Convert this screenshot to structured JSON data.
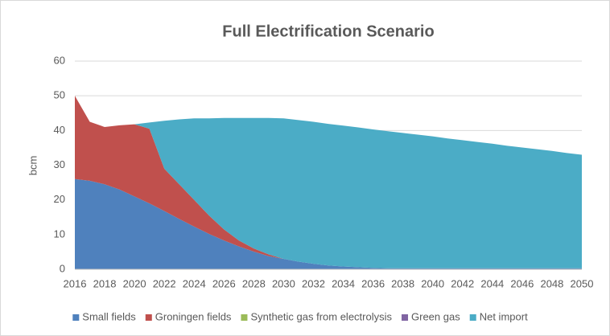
{
  "chart_data": {
    "type": "stacked_area",
    "title": "Full Electrification Scenario",
    "y_label": "bcm",
    "x": [
      2016,
      2017,
      2018,
      2019,
      2020,
      2021,
      2022,
      2023,
      2024,
      2025,
      2026,
      2027,
      2028,
      2029,
      2030,
      2031,
      2032,
      2033,
      2034,
      2035,
      2036,
      2037,
      2038,
      2039,
      2040,
      2041,
      2042,
      2043,
      2044,
      2045,
      2046,
      2047,
      2048,
      2049,
      2050
    ],
    "xlim": [
      2016,
      2050
    ],
    "xticks": [
      2016,
      2018,
      2020,
      2022,
      2024,
      2026,
      2028,
      2030,
      2032,
      2034,
      2036,
      2038,
      2040,
      2042,
      2044,
      2046,
      2048,
      2050
    ],
    "ylim": [
      0,
      60
    ],
    "yticks": [
      0,
      10,
      20,
      30,
      40,
      50,
      60
    ],
    "grid": true,
    "legend": "bottom",
    "series": [
      {
        "name": "Small fields",
        "color": "#4f81bd",
        "values": [
          26,
          25.5,
          24.5,
          23,
          21,
          19,
          16.8,
          14.5,
          12.3,
          10.2,
          8.3,
          6.6,
          5.1,
          3.8,
          3,
          2.2,
          1.6,
          1.1,
          0.8,
          0.6,
          0.4,
          0.3,
          0.3,
          0.3,
          0.3,
          0.3,
          0.3,
          0.3,
          0.3,
          0.3,
          0.3,
          0.3,
          0.3,
          0.3,
          0.3
        ]
      },
      {
        "name": "Groningen fields",
        "color": "#c0504d",
        "values": [
          24,
          17,
          16.5,
          18.5,
          20.8,
          21.5,
          12.2,
          10,
          7.7,
          5.3,
          3.2,
          1.7,
          0.9,
          0.5,
          0,
          0,
          0,
          0,
          0,
          0,
          0,
          0,
          0,
          0,
          0,
          0,
          0,
          0,
          0,
          0,
          0,
          0,
          0,
          0,
          0
        ]
      },
      {
        "name": "Synthetic gas from electrolysis",
        "color": "#9bbb59",
        "values": [
          0,
          0,
          0,
          0,
          0,
          0,
          0,
          0,
          0,
          0,
          0,
          0,
          0,
          0,
          0,
          0,
          0,
          0,
          0,
          0,
          0,
          0,
          0,
          0,
          0,
          0,
          0,
          0,
          0,
          0,
          0,
          0,
          0,
          0,
          0
        ]
      },
      {
        "name": "Green gas",
        "color": "#8064a2",
        "values": [
          0,
          0,
          0,
          0,
          0,
          0,
          0,
          0,
          0,
          0,
          0,
          0,
          0,
          0,
          0,
          0,
          0,
          0,
          0,
          0,
          0,
          0,
          0,
          0,
          0,
          0,
          0,
          0,
          0,
          0,
          0,
          0,
          0,
          0,
          0
        ]
      },
      {
        "name": "Net import",
        "color": "#4bacc6",
        "values": [
          0,
          0,
          0,
          0,
          0,
          1.8,
          13.8,
          18.7,
          23.5,
          28,
          32.1,
          35.3,
          37.6,
          39.3,
          40.5,
          40.8,
          40.9,
          40.8,
          40.6,
          40.3,
          39.9,
          39.5,
          39.0,
          38.5,
          38.0,
          37.4,
          36.9,
          36.4,
          35.9,
          35.3,
          34.8,
          34.3,
          33.8,
          33.2,
          32.7
        ]
      }
    ]
  }
}
